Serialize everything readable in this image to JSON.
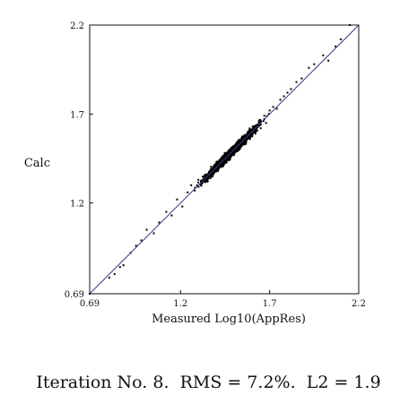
{
  "chart_data": {
    "type": "scatter",
    "title": "",
    "xlabel": "Measured Log10(AppRes)",
    "ylabel": "Calc",
    "xlim": [
      0.69,
      2.2
    ],
    "ylim": [
      0.69,
      2.2
    ],
    "x_ticks": [
      {
        "value": 0.69,
        "label": "0.69"
      },
      {
        "value": 1.2,
        "label": "1.2"
      },
      {
        "value": 1.7,
        "label": "1.7"
      },
      {
        "value": 2.2,
        "label": "2.2"
      }
    ],
    "y_ticks": [
      {
        "value": 0.69,
        "label": "0.69"
      },
      {
        "value": 1.2,
        "label": "1.2"
      },
      {
        "value": 1.7,
        "label": "1.7"
      },
      {
        "value": 2.2,
        "label": "2.2"
      }
    ],
    "reference_line": {
      "from": [
        0.69,
        0.69
      ],
      "to": [
        2.2,
        2.2
      ],
      "color": "#3a3a8a"
    },
    "point_color": "#000000",
    "grid": false,
    "points": [
      [
        0.69,
        0.69
      ],
      [
        0.8,
        0.78
      ],
      [
        0.83,
        0.8
      ],
      [
        0.86,
        0.84
      ],
      [
        0.88,
        0.85
      ],
      [
        0.92,
        0.92
      ],
      [
        0.95,
        0.96
      ],
      [
        0.98,
        0.99
      ],
      [
        1.01,
        1.05
      ],
      [
        1.05,
        1.03
      ],
      [
        1.08,
        1.09
      ],
      [
        1.12,
        1.15
      ],
      [
        1.15,
        1.13
      ],
      [
        1.18,
        1.22
      ],
      [
        1.21,
        1.18
      ],
      [
        1.24,
        1.26
      ],
      [
        1.26,
        1.3
      ],
      [
        1.28,
        1.27
      ],
      [
        1.3,
        1.33
      ],
      [
        1.32,
        1.31
      ],
      [
        1.34,
        1.36
      ],
      [
        1.35,
        1.32
      ],
      [
        1.37,
        1.39
      ],
      [
        1.38,
        1.35
      ],
      [
        1.4,
        1.42
      ],
      [
        1.41,
        1.38
      ],
      [
        1.43,
        1.45
      ],
      [
        1.44,
        1.41
      ],
      [
        1.46,
        1.48
      ],
      [
        1.47,
        1.44
      ],
      [
        1.49,
        1.51
      ],
      [
        1.5,
        1.47
      ],
      [
        1.52,
        1.54
      ],
      [
        1.53,
        1.5
      ],
      [
        1.55,
        1.57
      ],
      [
        1.56,
        1.53
      ],
      [
        1.58,
        1.6
      ],
      [
        1.59,
        1.56
      ],
      [
        1.61,
        1.63
      ],
      [
        1.62,
        1.59
      ],
      [
        1.64,
        1.66
      ],
      [
        1.65,
        1.62
      ],
      [
        1.67,
        1.69
      ],
      [
        1.68,
        1.65
      ],
      [
        1.7,
        1.72
      ],
      [
        1.72,
        1.74
      ],
      [
        1.74,
        1.73
      ],
      [
        1.76,
        1.78
      ],
      [
        1.78,
        1.8
      ],
      [
        1.8,
        1.82
      ],
      [
        1.82,
        1.84
      ],
      [
        1.85,
        1.88
      ],
      [
        1.88,
        1.9
      ],
      [
        1.92,
        1.96
      ],
      [
        1.95,
        1.98
      ],
      [
        2.0,
        2.03
      ],
      [
        2.03,
        2.0
      ],
      [
        2.07,
        2.08
      ],
      [
        2.1,
        2.12
      ],
      [
        2.15,
        2.2
      ]
    ]
  },
  "caption": "Iteration No. 8.  RMS = 7.2%.  L2 = 1.9"
}
